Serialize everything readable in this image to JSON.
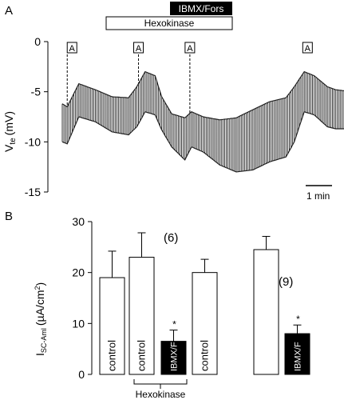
{
  "chart_data": [
    {
      "type": "line",
      "panel_label": "A",
      "ylabel": "V",
      "ylabel_sub": "te",
      "ylabel_unit": "(mV)",
      "yticks": [
        0,
        -5,
        -10,
        -15
      ],
      "ylim": [
        -15,
        0
      ],
      "bars": [
        {
          "label": "IBMX/Fors",
          "style": "filled"
        },
        {
          "label": "Hexokinase",
          "style": "outline"
        }
      ],
      "markers": [
        {
          "label": "A",
          "t": 0.3
        },
        {
          "label": "A",
          "t": 4.6
        },
        {
          "label": "A",
          "t": 7.7
        },
        {
          "label": "A",
          "t": 14.8
        }
      ],
      "scale_bar": "1 min",
      "trace": {
        "t": [
          0.0,
          0.3,
          1.0,
          2.0,
          3.0,
          4.0,
          4.5,
          5.0,
          5.6,
          6.0,
          6.6,
          7.4,
          7.8,
          8.5,
          9.5,
          10.5,
          11.5,
          12.5,
          13.5,
          14.0,
          14.6,
          15.2,
          16.0,
          16.5,
          17.0
        ],
        "upper": [
          -6.2,
          -6.5,
          -4.2,
          -4.8,
          -5.5,
          -5.6,
          -4.5,
          -3.0,
          -3.4,
          -5.5,
          -7.2,
          -7.6,
          -7.0,
          -7.5,
          -7.8,
          -7.6,
          -6.8,
          -6.0,
          -5.6,
          -4.5,
          -3.0,
          -3.4,
          -4.5,
          -4.8,
          -4.9
        ],
        "lower": [
          -10.0,
          -10.2,
          -7.5,
          -8.0,
          -9.0,
          -9.3,
          -8.5,
          -7.0,
          -7.3,
          -8.8,
          -10.5,
          -11.8,
          -10.5,
          -11.0,
          -12.3,
          -13.0,
          -12.8,
          -12.0,
          -11.5,
          -10.0,
          -7.0,
          -7.3,
          -8.5,
          -8.7,
          -8.7
        ]
      }
    },
    {
      "type": "bar",
      "panel_label": "B",
      "ylabel": "I",
      "ylabel_sub": "SC-Aml",
      "ylabel_unit": "(µA/cm",
      "ylabel_sup": "2",
      "ylabel_close": ")",
      "ylim": [
        0,
        30
      ],
      "yticks": [
        0,
        10,
        20,
        30
      ],
      "categories": [
        "control",
        "control",
        "IBMX/F",
        "control",
        "",
        "IBMX/F"
      ],
      "values": [
        19.0,
        23.0,
        6.5,
        20.0,
        24.5,
        8.0
      ],
      "errors": [
        5.2,
        4.8,
        2.2,
        2.6,
        2.6,
        1.7
      ],
      "fills": [
        "#ffffff",
        "#ffffff",
        "#000000",
        "#ffffff",
        "#ffffff",
        "#000000"
      ],
      "significant": [
        false,
        false,
        true,
        false,
        false,
        true
      ],
      "significance_mark": "*",
      "n_labels": [
        "(6)",
        "(9)"
      ],
      "group_label": "Hexokinase"
    }
  ]
}
